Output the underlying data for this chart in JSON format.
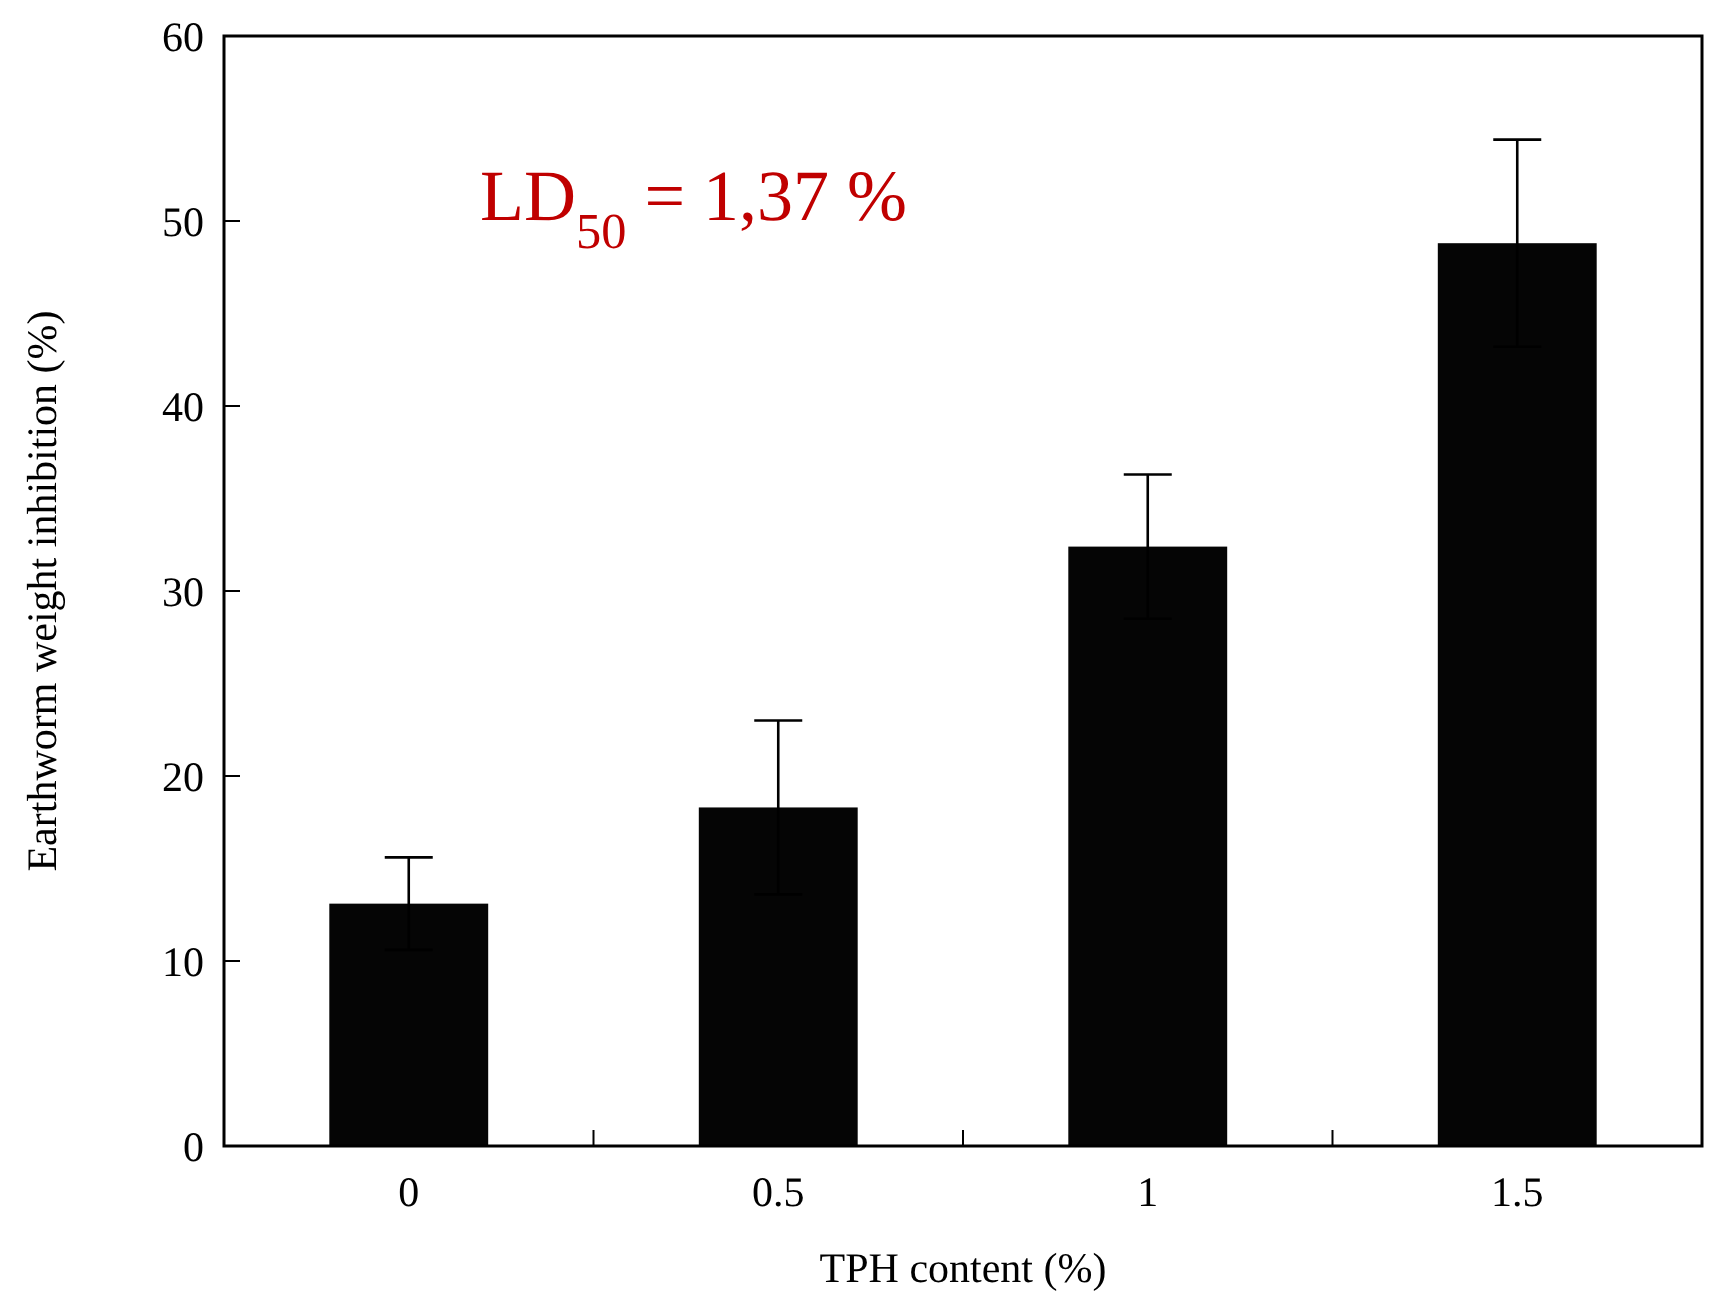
{
  "chart_data": {
    "type": "bar",
    "xlabel": "TPH content (%)",
    "ylabel": "Earthworm weight inhibition (%)",
    "categories": [
      "0",
      "0.5",
      "1",
      "1.5"
    ],
    "values": [
      13.1,
      18.3,
      32.4,
      48.8
    ],
    "errors": [
      2.5,
      4.7,
      3.9,
      5.6
    ],
    "color": "#050505",
    "ylim": [
      0,
      60
    ],
    "yticks": [
      0,
      10,
      20,
      30,
      40,
      50,
      60
    ],
    "annotations": [
      "LD$_{50}$ = 1,37 %"
    ],
    "grid": false
  }
}
